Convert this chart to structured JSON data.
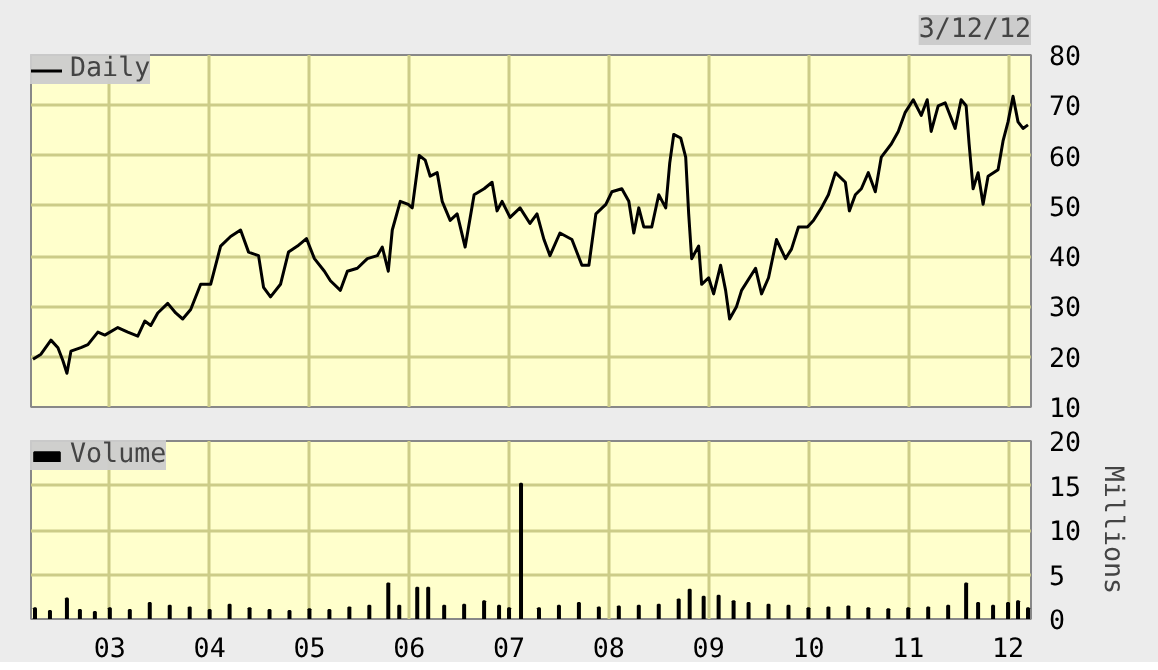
{
  "chart_data": [
    {
      "type": "line",
      "annotations": [
        "3/12/12"
      ],
      "xlim": [
        2002.21,
        2012.23
      ],
      "ylim": [
        10,
        80
      ],
      "xticks": [
        2003,
        2004,
        2005,
        2006,
        2007,
        2008,
        2009,
        2010,
        2011,
        2012
      ],
      "yticks": [
        10,
        20,
        30,
        40,
        50,
        60,
        70,
        80
      ],
      "grid": true,
      "legend": "top left",
      "tick_labels": "y",
      "x": [
        2002.23,
        2002.31,
        2002.41,
        2002.48,
        2002.53,
        2002.57,
        2002.61,
        2002.71,
        2002.78,
        2002.88,
        2002.95,
        2003.08,
        2003.18,
        2003.28,
        2003.35,
        2003.41,
        2003.48,
        2003.58,
        2003.66,
        2003.73,
        2003.81,
        2003.91,
        2004.01,
        2004.11,
        2004.21,
        2004.31,
        2004.39,
        2004.49,
        2004.54,
        2004.61,
        2004.71,
        2004.79,
        2004.88,
        2004.97,
        2005.05,
        2005.15,
        2005.21,
        2005.31,
        2005.38,
        2005.48,
        2005.58,
        2005.68,
        2005.73,
        2005.79,
        2005.83,
        2005.91,
        2005.99,
        2006.03,
        2006.1,
        2006.16,
        2006.21,
        2006.28,
        2006.33,
        2006.41,
        2006.48,
        2006.56,
        2006.65,
        2006.75,
        2006.83,
        2006.88,
        2006.93,
        2007.01,
        2007.11,
        2007.21,
        2007.28,
        2007.35,
        2007.41,
        2007.51,
        2007.63,
        2007.73,
        2007.8,
        2007.87,
        2007.97,
        2008.03,
        2008.13,
        2008.2,
        2008.25,
        2008.3,
        2008.35,
        2008.43,
        2008.5,
        2008.57,
        2008.61,
        2008.65,
        2008.72,
        2008.77,
        2008.8,
        2008.83,
        2008.9,
        2008.93,
        2009.0,
        2009.05,
        2009.12,
        2009.17,
        2009.21,
        2009.28,
        2009.33,
        2009.47,
        2009.53,
        2009.6,
        2009.68,
        2009.77,
        2009.83,
        2009.9,
        2009.99,
        2010.05,
        2010.13,
        2010.2,
        2010.27,
        2010.37,
        2010.41,
        2010.47,
        2010.53,
        2010.6,
        2010.67,
        2010.73,
        2010.83,
        2010.9,
        2010.97,
        2011.05,
        2011.13,
        2011.19,
        2011.23,
        2011.3,
        2011.37,
        2011.47,
        2011.53,
        2011.58,
        2011.61,
        2011.65,
        2011.7,
        2011.75,
        2011.8,
        2011.9,
        2011.95,
        2012.0,
        2012.05,
        2012.1,
        2012.15,
        2012.2
      ],
      "series": [
        {
          "name": "Daily",
          "color": "#000000",
          "values": [
            19.5,
            20.5,
            23.3,
            21.8,
            19.2,
            16.7,
            21.1,
            21.8,
            22.4,
            24.9,
            24.3,
            25.8,
            24.9,
            24.1,
            27.1,
            26.2,
            28.7,
            30.6,
            28.7,
            27.5,
            29.4,
            34.4,
            34.4,
            42.0,
            43.9,
            45.2,
            40.8,
            40.1,
            33.8,
            31.9,
            34.4,
            40.8,
            42.0,
            43.5,
            39.5,
            37.0,
            35.1,
            33.2,
            37.0,
            37.6,
            39.5,
            40.1,
            41.8,
            37.0,
            45.2,
            50.9,
            50.3,
            49.6,
            60.0,
            59.1,
            55.9,
            56.6,
            50.9,
            47.1,
            48.4,
            41.8,
            52.2,
            53.4,
            54.7,
            49.0,
            50.9,
            47.7,
            49.6,
            46.5,
            48.4,
            43.3,
            40.1,
            44.6,
            43.3,
            38.2,
            38.2,
            48.4,
            50.3,
            52.8,
            53.4,
            50.9,
            44.6,
            49.6,
            45.8,
            45.8,
            52.2,
            49.6,
            58.5,
            64.2,
            63.5,
            59.7,
            48.4,
            39.5,
            42.0,
            34.4,
            35.7,
            32.5,
            38.2,
            33.2,
            27.5,
            30.0,
            33.2,
            37.6,
            32.5,
            35.7,
            43.3,
            39.5,
            41.4,
            45.8,
            45.8,
            47.1,
            49.6,
            52.2,
            56.6,
            54.7,
            49.0,
            52.2,
            53.4,
            56.6,
            52.8,
            59.7,
            62.3,
            64.8,
            68.6,
            71.1,
            68.0,
            71.1,
            64.8,
            69.9,
            70.5,
            65.4,
            71.1,
            69.9,
            62.3,
            53.4,
            56.6,
            50.3,
            55.9,
            57.2,
            62.9,
            66.7,
            71.8,
            66.7,
            65.4,
            66.1
          ]
        }
      ]
    },
    {
      "type": "bar",
      "ylabel": "Millions",
      "xlim": [
        2002.21,
        2012.23
      ],
      "ylim": [
        0,
        20
      ],
      "xticks": [
        {
          "value": 2003,
          "label": "03"
        },
        {
          "value": 2004,
          "label": "04"
        },
        {
          "value": 2005,
          "label": "05"
        },
        {
          "value": 2006,
          "label": "06"
        },
        {
          "value": 2007,
          "label": "07"
        },
        {
          "value": 2008,
          "label": "08"
        },
        {
          "value": 2009,
          "label": "09"
        },
        {
          "value": 2010,
          "label": "10"
        },
        {
          "value": 2011,
          "label": "11"
        },
        {
          "value": 2012,
          "label": "12"
        }
      ],
      "yticks": [
        0,
        5,
        10,
        15,
        20
      ],
      "grid": true,
      "legend": "top left",
      "x": [
        2002.25,
        2002.4,
        2002.57,
        2002.7,
        2002.85,
        2003.0,
        2003.2,
        2003.4,
        2003.6,
        2003.8,
        2004.0,
        2004.2,
        2004.4,
        2004.6,
        2004.8,
        2005.0,
        2005.2,
        2005.4,
        2005.6,
        2005.79,
        2005.9,
        2006.08,
        2006.19,
        2006.35,
        2006.55,
        2006.75,
        2006.9,
        2007.0,
        2007.12,
        2007.3,
        2007.5,
        2007.7,
        2007.9,
        2008.1,
        2008.3,
        2008.5,
        2008.7,
        2008.81,
        2008.95,
        2009.1,
        2009.25,
        2009.4,
        2009.6,
        2009.8,
        2010.0,
        2010.2,
        2010.4,
        2010.6,
        2010.8,
        2011.0,
        2011.2,
        2011.4,
        2011.58,
        2011.7,
        2011.85,
        2012.0,
        2012.1,
        2012.2
      ],
      "series": [
        {
          "name": "Volume",
          "color": "#000000",
          "values": [
            1.2,
            0.9,
            2.3,
            1.0,
            0.8,
            1.2,
            1.0,
            1.8,
            1.5,
            1.3,
            1.0,
            1.6,
            1.2,
            1.0,
            0.9,
            1.1,
            1.0,
            1.3,
            1.5,
            4.0,
            1.5,
            3.5,
            3.5,
            1.5,
            1.6,
            2.0,
            1.5,
            1.2,
            15.2,
            1.2,
            1.5,
            1.8,
            1.3,
            1.4,
            1.5,
            1.6,
            2.2,
            3.3,
            2.5,
            2.6,
            2.0,
            1.8,
            1.6,
            1.5,
            1.2,
            1.3,
            1.4,
            1.2,
            1.1,
            1.2,
            1.3,
            1.5,
            4.0,
            1.8,
            1.5,
            1.8,
            2.0,
            1.2
          ]
        }
      ]
    }
  ]
}
